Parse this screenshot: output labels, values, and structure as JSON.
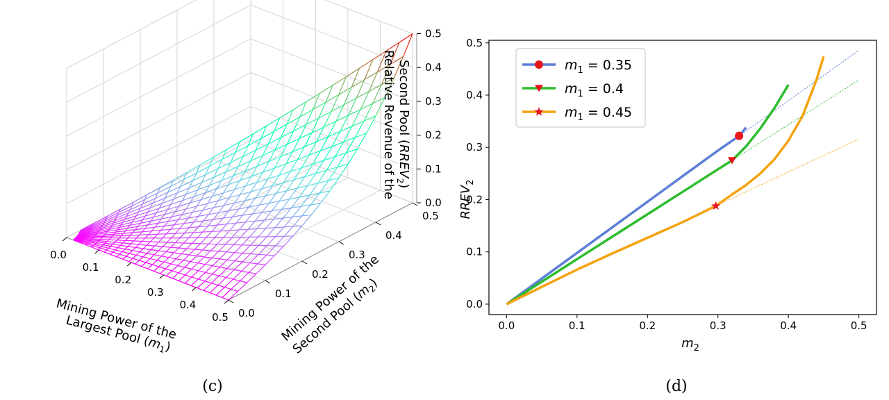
{
  "chart_data": [
    {
      "id": "c",
      "type": "surface",
      "caption": "(c)",
      "xlabel_lines": [
        "Mining Power of the",
        "Largest Pool (m1)"
      ],
      "ylabel_lines": [
        "Mining Power of the",
        "Second Pool (m2)"
      ],
      "zlabel_lines": [
        "Relative Revenue of the",
        "Second Pool (RREV2)"
      ],
      "x_ticks": [
        "0.0",
        "0.1",
        "0.2",
        "0.3",
        "0.4",
        "0.5"
      ],
      "y_ticks": [
        "0.0",
        "0.1",
        "0.2",
        "0.3",
        "0.4",
        "0.5"
      ],
      "z_ticks": [
        "0.0",
        "0.1",
        "0.2",
        "0.3",
        "0.4",
        "0.5"
      ],
      "xlim": [
        0,
        0.5
      ],
      "ylim": [
        0,
        0.5
      ],
      "zlim": [
        0,
        0.5
      ],
      "colormap": "rainbow",
      "grid": true
    },
    {
      "id": "d",
      "type": "line",
      "caption": "(d)",
      "xlabel": "m2",
      "ylabel": "RREV2",
      "xlim": [
        -0.025,
        0.525
      ],
      "ylim": [
        -0.02,
        0.505
      ],
      "x_ticks": [
        "0.0",
        "0.1",
        "0.2",
        "0.3",
        "0.4",
        "0.5"
      ],
      "y_ticks": [
        "0.0",
        "0.1",
        "0.2",
        "0.3",
        "0.4",
        "0.5"
      ],
      "legend_position": "top-left",
      "series": [
        {
          "name": "m1 = 0.35",
          "color": "#5b7fd6",
          "marker": "circle",
          "marker_color": "#e8141c",
          "x": [
            0,
            0.05,
            0.1,
            0.15,
            0.2,
            0.25,
            0.3,
            0.33,
            0.34
          ],
          "y": [
            0,
            0.049,
            0.098,
            0.147,
            0.196,
            0.245,
            0.294,
            0.322,
            0.338
          ],
          "marker_point": [
            0.33,
            0.322
          ],
          "dotted_x": [
            0.33,
            0.5
          ],
          "dotted_y": [
            0.322,
            0.486
          ]
        },
        {
          "name": "m1 = 0.4",
          "color": "#2dbc2d",
          "marker": "triangle-down",
          "marker_color": "#e8141c",
          "x": [
            0,
            0.05,
            0.1,
            0.15,
            0.2,
            0.25,
            0.3,
            0.32,
            0.34,
            0.36,
            0.38,
            0.4
          ],
          "y": [
            0,
            0.043,
            0.086,
            0.129,
            0.172,
            0.215,
            0.258,
            0.275,
            0.302,
            0.336,
            0.375,
            0.42
          ],
          "marker_point": [
            0.32,
            0.275
          ],
          "dotted_x": [
            0.32,
            0.5
          ],
          "dotted_y": [
            0.275,
            0.429
          ]
        },
        {
          "name": "m1 = 0.45",
          "color": "#f5a20f",
          "marker": "star",
          "marker_color": "#e8141c",
          "x": [
            0,
            0.05,
            0.1,
            0.15,
            0.2,
            0.25,
            0.297,
            0.32,
            0.34,
            0.36,
            0.38,
            0.4,
            0.42,
            0.44,
            0.45
          ],
          "y": [
            0,
            0.033,
            0.066,
            0.097,
            0.127,
            0.157,
            0.188,
            0.21,
            0.228,
            0.25,
            0.277,
            0.313,
            0.36,
            0.43,
            0.474
          ],
          "marker_point": [
            0.297,
            0.188
          ],
          "dotted_x": [
            0.297,
            0.5
          ],
          "dotted_y": [
            0.188,
            0.316
          ]
        }
      ]
    }
  ]
}
